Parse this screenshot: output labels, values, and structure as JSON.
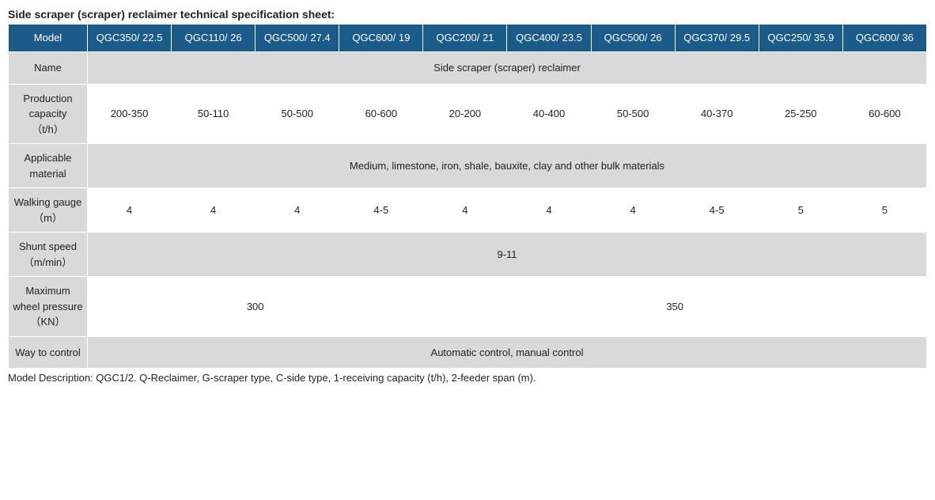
{
  "title": "Side scraper (scraper) reclaimer technical specification sheet:",
  "header_label": "Model",
  "models": [
    "QGC350/ 22.5",
    "QGC110/ 26",
    "QGC500/ 27.4",
    "QGC600/ 19",
    "QGC200/ 21",
    "QGC400/ 23.5",
    "QGC500/ 26",
    "QGC370/ 29.5",
    "QGC250/ 35.9",
    "QGC600/ 36"
  ],
  "rows": [
    {
      "label": "Name",
      "span": "full",
      "value": "Side scraper (scraper) reclaimer"
    },
    {
      "label": "Production capacity\n（t/h）",
      "cells": [
        "200-350",
        "50-110",
        "50-500",
        "60-600",
        "20-200",
        "40-400",
        "50-500",
        "40-370",
        "25-250",
        "60-600"
      ]
    },
    {
      "label": "Applicable material",
      "span": "full",
      "value": "Medium, limestone, iron, shale, bauxite, clay and other bulk materials"
    },
    {
      "label": "Walking gauge\n（m）",
      "cells": [
        "4",
        "4",
        "4",
        "4-5",
        "4",
        "4",
        "4",
        "4-5",
        "5",
        "5"
      ]
    },
    {
      "label": "Shunt speed\n（m/min）",
      "span": "full",
      "value": "9-11"
    },
    {
      "label": "Maximum wheel pressure\n（KN）",
      "spans": [
        {
          "colspan": 4,
          "value": "300"
        },
        {
          "colspan": 6,
          "value": "350"
        }
      ]
    },
    {
      "label": "Way to control",
      "span": "full",
      "value": "Automatic control, manual control"
    }
  ],
  "footnote": "Model Description: QGC1/2. Q-Reclaimer, G-scraper type, C-side type, 1-receiving capacity (t/h), 2-feeder span (m).",
  "colors": {
    "header_bg": "#1b5b8a",
    "header_text": "#ffffff",
    "label_bg": "#d9d9d9",
    "row_even_bg": "#d9d9d9",
    "row_odd_bg": "#ffffff",
    "border": "#ffffff"
  }
}
